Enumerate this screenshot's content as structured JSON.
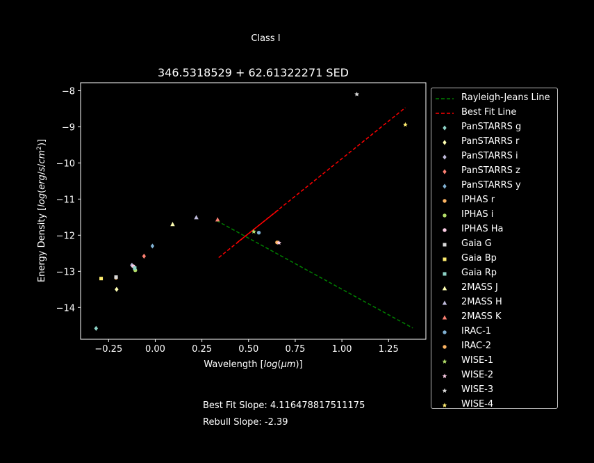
{
  "suptitle": "Class I",
  "footer": {
    "best_fit_slope": "Best Fit Slope: 4.116478817511175",
    "rebull_slope": "Rebull Slope: -2.39"
  },
  "chart_data": {
    "type": "scatter",
    "title": "346.5318529 + 62.61322271 SED",
    "xlabel": "Wavelength [log(μm)]",
    "ylabel": "Energy Density [log(erg/s/cm²)]",
    "xlim": [
      -0.4,
      1.45
    ],
    "ylim": [
      -14.88,
      -7.78
    ],
    "xticks": [
      -0.25,
      0.0,
      0.25,
      0.5,
      0.75,
      1.0,
      1.25
    ],
    "xtick_labels": [
      "−0.25",
      "0.00",
      "0.25",
      "0.50",
      "0.75",
      "1.00",
      "1.25"
    ],
    "yticks": [
      -14,
      -13,
      -12,
      -11,
      -10,
      -9,
      -8
    ],
    "ytick_labels": [
      "−14",
      "−13",
      "−12",
      "−11",
      "−10",
      "−9",
      "−8"
    ],
    "grid": false,
    "legend_position": "outside-right",
    "lines": [
      {
        "name": "Rayleigh-Jeans Line",
        "color": "#008000",
        "dash": true,
        "x": [
          0.33,
          1.38
        ],
        "y": [
          -11.6,
          -14.57
        ]
      },
      {
        "name": "Best Fit Line",
        "color": "#ff0000",
        "dash": true,
        "x": [
          0.34,
          1.34
        ],
        "y": [
          -12.62,
          -8.47
        ]
      }
    ],
    "series": [
      {
        "name": "PanSTARRS g",
        "marker": "diamond",
        "color": "#8dd3c7",
        "x": [
          -0.317
        ],
        "y": [
          -14.58
        ]
      },
      {
        "name": "PanSTARRS r",
        "marker": "diamond",
        "color": "#ffffb3",
        "x": [
          -0.207
        ],
        "y": [
          -13.5
        ]
      },
      {
        "name": "PanSTARRS i",
        "marker": "diamond",
        "color": "#bebada",
        "x": [
          -0.125
        ],
        "y": [
          -12.83
        ]
      },
      {
        "name": "PanSTARRS z",
        "marker": "diamond",
        "color": "#fb8072",
        "x": [
          -0.06
        ],
        "y": [
          -12.58
        ]
      },
      {
        "name": "PanSTARRS y",
        "marker": "diamond",
        "color": "#80b1d3",
        "x": [
          -0.015
        ],
        "y": [
          -12.3
        ]
      },
      {
        "name": "IPHAS r",
        "marker": "circle",
        "color": "#fdb462",
        "x": [
          -0.21
        ],
        "y": [
          -13.18
        ]
      },
      {
        "name": "IPHAS i",
        "marker": "circle",
        "color": "#b3de69",
        "x": [
          -0.107
        ],
        "y": [
          -12.97
        ]
      },
      {
        "name": "IPHAS Ha",
        "marker": "circle",
        "color": "#fccde5",
        "x": [
          -0.117
        ],
        "y": [
          -12.86
        ]
      },
      {
        "name": "Gaia G",
        "marker": "square",
        "color": "#d9d9d9",
        "x": [
          -0.21
        ],
        "y": [
          -13.16
        ]
      },
      {
        "name": "Gaia Bp",
        "marker": "square",
        "color": "#ffed6f",
        "x": [
          -0.29
        ],
        "y": [
          -13.2
        ]
      },
      {
        "name": "Gaia Rp",
        "marker": "square",
        "color": "#8dd3c7",
        "x": [
          -0.11
        ],
        "y": [
          -12.91
        ]
      },
      {
        "name": "2MASS J",
        "marker": "triangle",
        "color": "#ffffb3",
        "x": [
          0.093
        ],
        "y": [
          -11.7
        ]
      },
      {
        "name": "2MASS H",
        "marker": "triangle",
        "color": "#bebada",
        "x": [
          0.22
        ],
        "y": [
          -11.51
        ]
      },
      {
        "name": "2MASS K",
        "marker": "triangle",
        "color": "#fb8072",
        "x": [
          0.334
        ],
        "y": [
          -11.57
        ]
      },
      {
        "name": "IRAC-1",
        "marker": "circle",
        "color": "#80b1d3",
        "x": [
          0.555
        ],
        "y": [
          -11.93
        ]
      },
      {
        "name": "IRAC-2",
        "marker": "circle",
        "color": "#fdb462",
        "x": [
          0.653
        ],
        "y": [
          -12.2
        ]
      },
      {
        "name": "WISE-1",
        "marker": "star",
        "color": "#b3de69",
        "x": [
          0.528
        ],
        "y": [
          -11.9
        ]
      },
      {
        "name": "WISE-2",
        "marker": "star",
        "color": "#fccde5",
        "x": [
          0.663
        ],
        "y": [
          -12.21
        ]
      },
      {
        "name": "WISE-3",
        "marker": "star",
        "color": "#d9d9d9",
        "x": [
          1.08
        ],
        "y": [
          -8.1
        ]
      },
      {
        "name": "WISE-4",
        "marker": "star",
        "color": "#ffed6f",
        "x": [
          1.34
        ],
        "y": [
          -8.94
        ]
      }
    ]
  }
}
